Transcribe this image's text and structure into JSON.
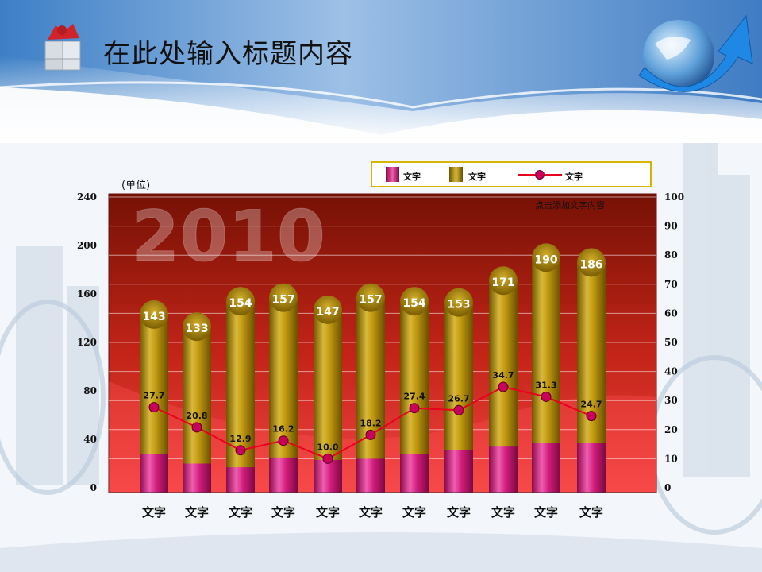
{
  "slide": {
    "title": "在此处输入标题内容"
  },
  "chart_data": {
    "type": "bar",
    "unit_label": "(单位)",
    "annotation": "点击添加文字内容",
    "watermark": "2010",
    "categories": [
      "文字",
      "文字",
      "文字",
      "文字",
      "文字",
      "文字",
      "文字",
      "文字",
      "文字",
      "文字",
      "文字"
    ],
    "series": [
      {
        "name": "文字",
        "kind": "bar-bottom",
        "axis": "left",
        "values": [
          28,
          20,
          17,
          25,
          23,
          24,
          28,
          31,
          34,
          37,
          37
        ]
      },
      {
        "name": "文字",
        "kind": "bar-total",
        "axis": "left",
        "values": [
          143,
          133,
          154,
          157,
          147,
          157,
          154,
          153,
          171,
          190,
          186
        ]
      },
      {
        "name": "文字",
        "kind": "line",
        "axis": "right",
        "values": [
          27.7,
          20.8,
          12.9,
          16.2,
          10.0,
          18.2,
          27.4,
          26.7,
          34.7,
          31.3,
          24.7
        ]
      }
    ],
    "y_left": {
      "ticks": [
        "0",
        "40",
        "80",
        "120",
        "160",
        "200",
        "240"
      ],
      "range": [
        0,
        240
      ]
    },
    "y_right": {
      "ticks": [
        "0",
        "10",
        "20",
        "30",
        "40",
        "50",
        "60",
        "70",
        "80",
        "90",
        "100"
      ],
      "range": [
        0,
        100
      ]
    },
    "legend": "top-right",
    "grid": true,
    "colors": {
      "bottom": "#c2186e",
      "total": "#a88a10",
      "line": "#e8001e",
      "marker": "#c8005a",
      "plot_top": "#7a1408",
      "plot_bottom": "#f23c3c",
      "legend_border": "#d6b500"
    }
  }
}
